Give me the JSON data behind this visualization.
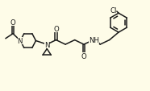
{
  "bg_color": "#fefce8",
  "line_color": "#1a1a1a",
  "line_width": 1.1,
  "font_size": 6.2,
  "fig_width": 1.86,
  "fig_height": 1.14,
  "dpi": 100,
  "xlim": [
    0,
    10
  ],
  "ylim": [
    0,
    6
  ]
}
